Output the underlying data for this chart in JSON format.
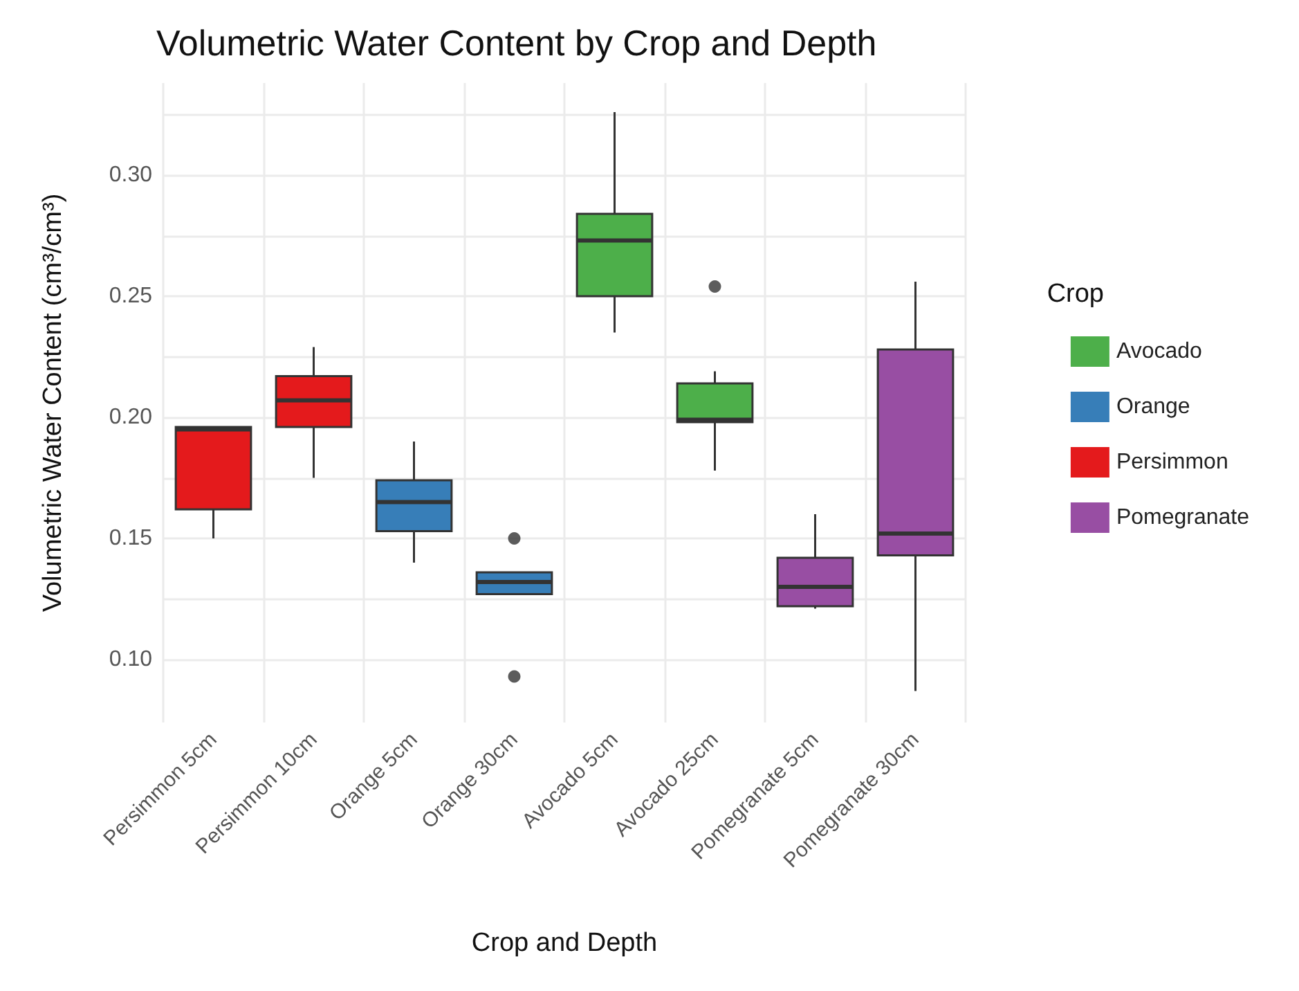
{
  "chart_data": {
    "type": "box",
    "title": "Volumetric Water Content by Crop and Depth",
    "xlabel": "Crop and Depth",
    "ylabel": "Volumetric Water Content (cm³/cm³)",
    "legend_title": "Crop",
    "legend": "right",
    "grid": true,
    "categories": [
      "Persimmon 5cm",
      "Persimmon 10cm",
      "Orange 5cm",
      "Orange 30cm",
      "Avocado 5cm",
      "Avocado 25cm",
      "Pomegranate 5cm",
      "Pomegranate 30cm"
    ],
    "ylim": [
      0.074,
      0.338
    ],
    "yticks": [
      {
        "value": 0.1,
        "label": "0.10"
      },
      {
        "value": 0.125,
        "label": null
      },
      {
        "value": 0.15,
        "label": "0.15"
      },
      {
        "value": 0.175,
        "label": null
      },
      {
        "value": 0.2,
        "label": "0.20"
      },
      {
        "value": 0.225,
        "label": null
      },
      {
        "value": 0.25,
        "label": "0.25"
      },
      {
        "value": 0.275,
        "label": null
      },
      {
        "value": 0.3,
        "label": "0.30"
      },
      {
        "value": 0.325,
        "label": null
      }
    ],
    "series": [
      {
        "name": "Avocado",
        "color": "#4daf4a",
        "boxes": [
          null,
          null,
          null,
          null,
          {
            "low": 0.235,
            "q1": 0.25,
            "median": 0.273,
            "q3": 0.284,
            "high": 0.326
          },
          {
            "low": 0.178,
            "q1": 0.198,
            "median": 0.199,
            "q3": 0.214,
            "high": 0.219,
            "outliers": [
              0.254
            ]
          },
          null,
          null
        ]
      },
      {
        "name": "Orange",
        "color": "#377eb8",
        "boxes": [
          null,
          null,
          {
            "low": 0.14,
            "q1": 0.153,
            "median": 0.165,
            "q3": 0.174,
            "high": 0.19
          },
          {
            "low": 0.127,
            "q1": 0.127,
            "median": 0.132,
            "q3": 0.136,
            "high": 0.136,
            "outliers": [
              0.15,
              0.093
            ]
          },
          null,
          null,
          null,
          null
        ]
      },
      {
        "name": "Persimmon",
        "color": "#e41a1c",
        "boxes": [
          {
            "low": 0.15,
            "q1": 0.162,
            "median": 0.195,
            "q3": 0.196,
            "high": 0.196
          },
          {
            "low": 0.175,
            "q1": 0.196,
            "median": 0.207,
            "q3": 0.217,
            "high": 0.229
          },
          null,
          null,
          null,
          null,
          null,
          null
        ]
      },
      {
        "name": "Pomegranate",
        "color": "#984ea3",
        "boxes": [
          null,
          null,
          null,
          null,
          null,
          null,
          {
            "low": 0.121,
            "q1": 0.122,
            "median": 0.13,
            "q3": 0.142,
            "high": 0.16
          },
          {
            "low": 0.087,
            "q1": 0.143,
            "median": 0.152,
            "q3": 0.228,
            "high": 0.256
          }
        ]
      }
    ]
  }
}
